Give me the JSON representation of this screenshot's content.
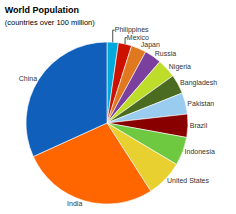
{
  "chart_data": {
    "type": "pie",
    "title": "World Population",
    "subtitle": "(countries over 100 million)",
    "categories": [
      "Philippines",
      "Mexico",
      "Japan",
      "Russia",
      "Nigeria",
      "Bangladesh",
      "Pakistan",
      "Brazil",
      "Indonesia",
      "United States",
      "India",
      "China"
    ],
    "values": [
      95,
      112,
      127,
      143,
      160,
      162,
      180,
      195,
      240,
      310,
      1150,
      1340
    ],
    "colors": [
      "#00AADD",
      "#CC1100",
      "#E07820",
      "#7B3F9E",
      "#BEDD2A",
      "#4B6B20",
      "#99CCEE",
      "#880000",
      "#6EC840",
      "#E8D030",
      "#FF6600",
      "#1060BB"
    ]
  }
}
